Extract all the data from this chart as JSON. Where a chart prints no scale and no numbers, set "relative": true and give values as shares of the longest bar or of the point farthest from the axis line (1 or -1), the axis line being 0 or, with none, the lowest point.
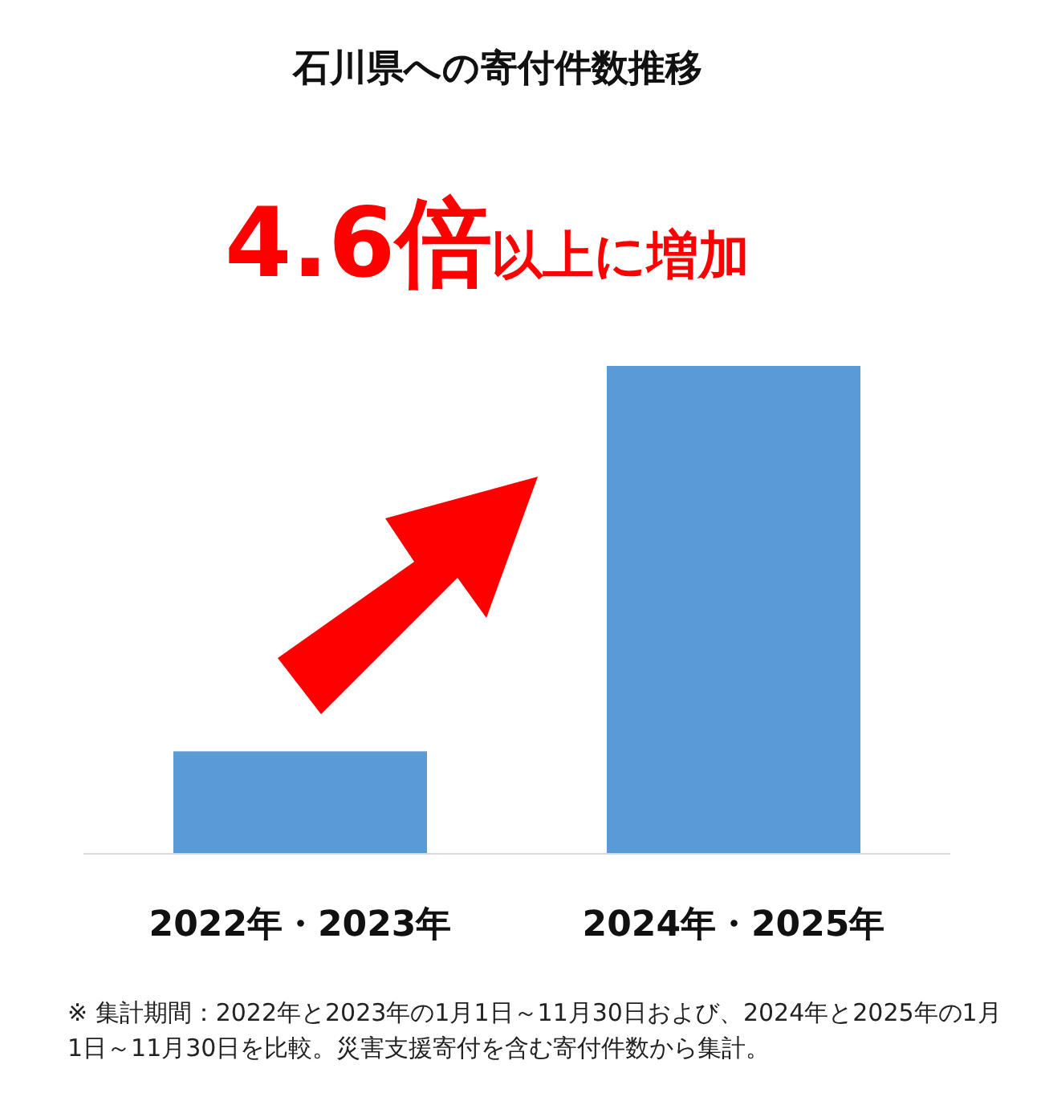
{
  "chart_data": {
    "type": "bar",
    "title": "石川県への寄付件数推移",
    "relative": true,
    "categories": [
      "2022年・2023年",
      "2024年・2025年"
    ],
    "values": [
      0.21,
      1
    ],
    "color": "#5b9bd5",
    "annotations": [
      "4.6倍",
      "以上に増加",
      "※ 集計期間：2022年と2023年の1月1日～11月30日および、2024年と2025年の1月1日～11月30日を比較。災害支援寄付を含む寄付件数から集計。"
    ]
  }
}
